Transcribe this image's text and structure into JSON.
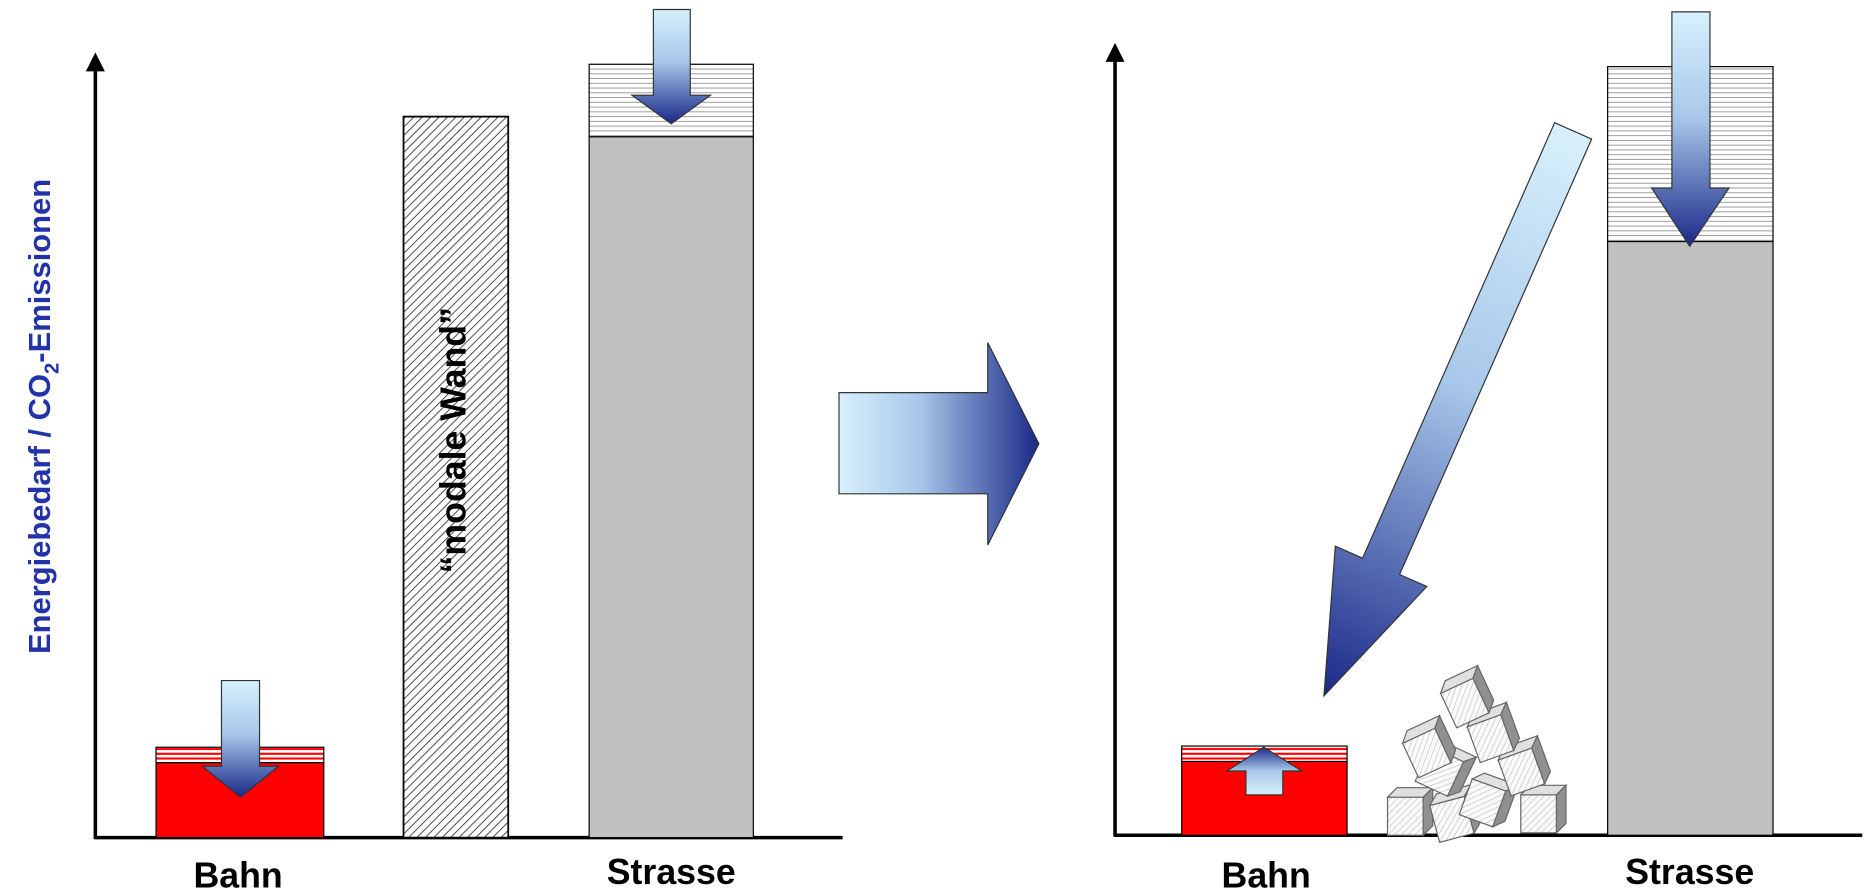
{
  "y_axis_label": {
    "text": "Energiebedarf / CO",
    "subscript": "2",
    "suffix": "-Emissionen"
  },
  "before": {
    "categories": [
      "Bahn",
      "Strasse"
    ],
    "wall_label": "“modale Wand”"
  },
  "after": {
    "categories": [
      "Bahn",
      "Strasse"
    ]
  }
}
